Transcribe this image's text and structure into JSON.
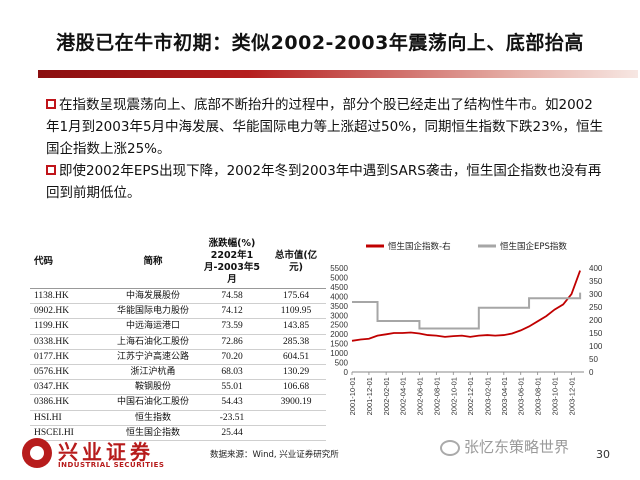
{
  "title": "港股已在牛市初期：类似2002-2003年震荡向上、底部抬高",
  "paragraphs": [
    "在指数呈现震荡向上、底部不断抬升的过程中，部分个股已经走出了结构性牛市。如2002年1月到2003年5月中海发展、华能国际电力等上涨超过50%，同期恒生指数下跌23%，恒生国企指数上涨25%。",
    "即使2002年EPS出现下降，2002年冬到2003年中遇到SARS袭击，恒生国企指数也没有再回到前期低位。"
  ],
  "table": {
    "headers": [
      "代码",
      "简称",
      "涨跌幅(%) 2202年1月-2003年5月",
      "总市值(亿元)"
    ],
    "rows": [
      [
        "1138.HK",
        "中海发展股份",
        "74.58",
        "175.64"
      ],
      [
        "0902.HK",
        "华能国际电力股份",
        "74.12",
        "1109.95"
      ],
      [
        "1199.HK",
        "中远海运港口",
        "73.59",
        "143.85"
      ],
      [
        "0338.HK",
        "上海石油化工股份",
        "72.86",
        "285.38"
      ],
      [
        "0177.HK",
        "江苏宁沪高速公路",
        "70.20",
        "604.51"
      ],
      [
        "0576.HK",
        "浙江沪杭甬",
        "68.03",
        "130.29"
      ],
      [
        "0347.HK",
        "鞍钢股份",
        "55.01",
        "106.68"
      ],
      [
        "0386.HK",
        "中国石油化工股份",
        "54.43",
        "3900.19"
      ],
      [
        "HSI.HI",
        "恒生指数",
        "-23.51",
        ""
      ],
      [
        "HSCEI.HI",
        "恒生国企指数",
        "25.44",
        ""
      ]
    ]
  },
  "chart_data": {
    "type": "line",
    "series": [
      {
        "name": "恒生国企指数-右",
        "color": "#c00000",
        "axis": "right",
        "x": [
          "2001-10-01",
          "2001-11-01",
          "2001-12-01",
          "2002-01-01",
          "2002-02-01",
          "2002-03-01",
          "2002-04-01",
          "2002-05-01",
          "2002-06-01",
          "2002-07-01",
          "2002-08-01",
          "2002-09-01",
          "2002-10-01",
          "2002-11-01",
          "2002-12-01",
          "2003-01-01",
          "2003-02-01",
          "2003-03-01",
          "2003-04-01",
          "2003-05-01",
          "2003-06-01",
          "2003-07-01",
          "2003-08-01",
          "2003-09-01",
          "2003-10-01",
          "2003-11-01",
          "2003-12-01",
          "2004-01-01"
        ],
        "values": [
          120,
          125,
          128,
          140,
          145,
          150,
          150,
          152,
          148,
          142,
          140,
          135,
          138,
          140,
          135,
          140,
          142,
          140,
          142,
          148,
          160,
          175,
          195,
          215,
          240,
          260,
          300,
          390
        ]
      },
      {
        "name": "恒生国企EPS指数",
        "color": "#a6a6a6",
        "axis": "left",
        "x": [
          "2001-10-01",
          "2001-12-01",
          "2002-01-01",
          "2002-03-01",
          "2002-06-01",
          "2002-09-01",
          "2002-12-01",
          "2003-01-01",
          "2003-04-01",
          "2003-07-01",
          "2003-10-01",
          "2004-01-01"
        ],
        "values": [
          3700,
          3700,
          2700,
          2700,
          2300,
          2300,
          2300,
          3400,
          3400,
          3900,
          3900,
          4200
        ]
      }
    ],
    "x_tick_labels": [
      "2001-10-01",
      "2001-12-01",
      "2002-02-01",
      "2002-04-01",
      "2002-06-01",
      "2002-08-01",
      "2002-10-01",
      "2002-12-01",
      "2003-02-01",
      "2003-04-01",
      "2003-06-01",
      "2003-08-01",
      "2003-10-01",
      "2003-12-01"
    ],
    "y_left": {
      "ticks": [
        0,
        500,
        1000,
        1500,
        2000,
        2500,
        3000,
        3500,
        4000,
        4500,
        5000,
        5500
      ],
      "ylim": [
        0,
        5500
      ]
    },
    "y_right": {
      "ticks": [
        0,
        50,
        100,
        150,
        200,
        250,
        300,
        350,
        400
      ],
      "ylim": [
        0,
        400
      ]
    },
    "legend_position": "top"
  },
  "footer": {
    "source": "数据来源：Wind, 兴业证券研究所",
    "page_number": "30",
    "logo_cn": "兴业证券",
    "logo_en": "INDUSTRIAL SECURITIES",
    "watermark": "张忆东策略世界"
  }
}
